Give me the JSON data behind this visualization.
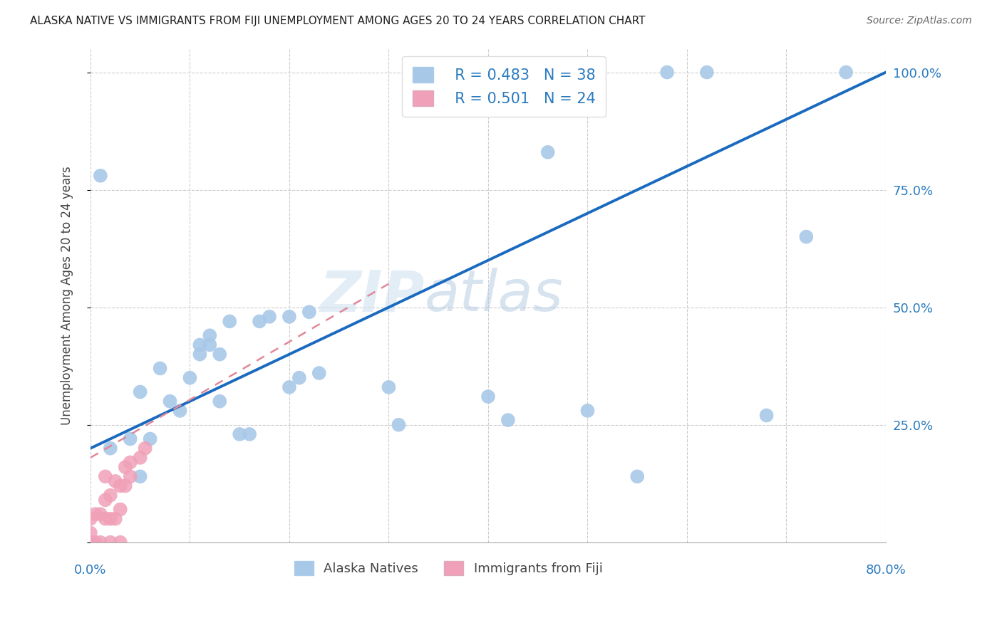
{
  "title": "ALASKA NATIVE VS IMMIGRANTS FROM FIJI UNEMPLOYMENT AMONG AGES 20 TO 24 YEARS CORRELATION CHART",
  "source": "Source: ZipAtlas.com",
  "ylabel": "Unemployment Among Ages 20 to 24 years",
  "xlim": [
    0,
    0.8
  ],
  "ylim": [
    0,
    1.05
  ],
  "xticks": [
    0.0,
    0.1,
    0.2,
    0.3,
    0.4,
    0.5,
    0.6,
    0.7,
    0.8
  ],
  "yticks": [
    0.0,
    0.25,
    0.5,
    0.75,
    1.0
  ],
  "watermark_zip": "ZIP",
  "watermark_atlas": "atlas",
  "legend_r1": "R = 0.483",
  "legend_n1": "N = 38",
  "legend_r2": "R = 0.501",
  "legend_n2": "N = 24",
  "blue_color": "#a8c8e8",
  "pink_color": "#f0a0b8",
  "line_blue": "#1a6abf",
  "line_pink": "#e08898",
  "blue_line_x0": 0.0,
  "blue_line_y0": 0.2,
  "blue_line_x1": 0.8,
  "blue_line_y1": 1.0,
  "pink_line_x0": 0.0,
  "pink_line_y0": 0.18,
  "pink_line_x1": 0.3,
  "pink_line_y1": 0.55,
  "alaska_x": [
    0.01,
    0.02,
    0.04,
    0.05,
    0.05,
    0.06,
    0.07,
    0.08,
    0.09,
    0.1,
    0.11,
    0.11,
    0.12,
    0.12,
    0.13,
    0.13,
    0.14,
    0.15,
    0.16,
    0.17,
    0.18,
    0.2,
    0.2,
    0.21,
    0.22,
    0.23,
    0.3,
    0.31,
    0.4,
    0.42,
    0.46,
    0.5,
    0.55,
    0.58,
    0.62,
    0.68,
    0.72,
    0.76
  ],
  "alaska_y": [
    0.78,
    0.2,
    0.22,
    0.32,
    0.14,
    0.22,
    0.37,
    0.3,
    0.28,
    0.35,
    0.4,
    0.42,
    0.42,
    0.44,
    0.4,
    0.3,
    0.47,
    0.23,
    0.23,
    0.47,
    0.48,
    0.33,
    0.48,
    0.35,
    0.49,
    0.36,
    0.33,
    0.25,
    0.31,
    0.26,
    0.83,
    0.28,
    0.14,
    1.0,
    1.0,
    0.27,
    0.65,
    1.0
  ],
  "fiji_x": [
    0.0,
    0.0,
    0.0,
    0.005,
    0.005,
    0.01,
    0.01,
    0.015,
    0.015,
    0.015,
    0.02,
    0.02,
    0.02,
    0.025,
    0.025,
    0.03,
    0.03,
    0.03,
    0.035,
    0.035,
    0.04,
    0.04,
    0.05,
    0.055
  ],
  "fiji_y": [
    0.0,
    0.02,
    0.05,
    0.0,
    0.06,
    0.0,
    0.06,
    0.05,
    0.09,
    0.14,
    0.0,
    0.05,
    0.1,
    0.05,
    0.13,
    0.0,
    0.07,
    0.12,
    0.12,
    0.16,
    0.14,
    0.17,
    0.18,
    0.2
  ]
}
